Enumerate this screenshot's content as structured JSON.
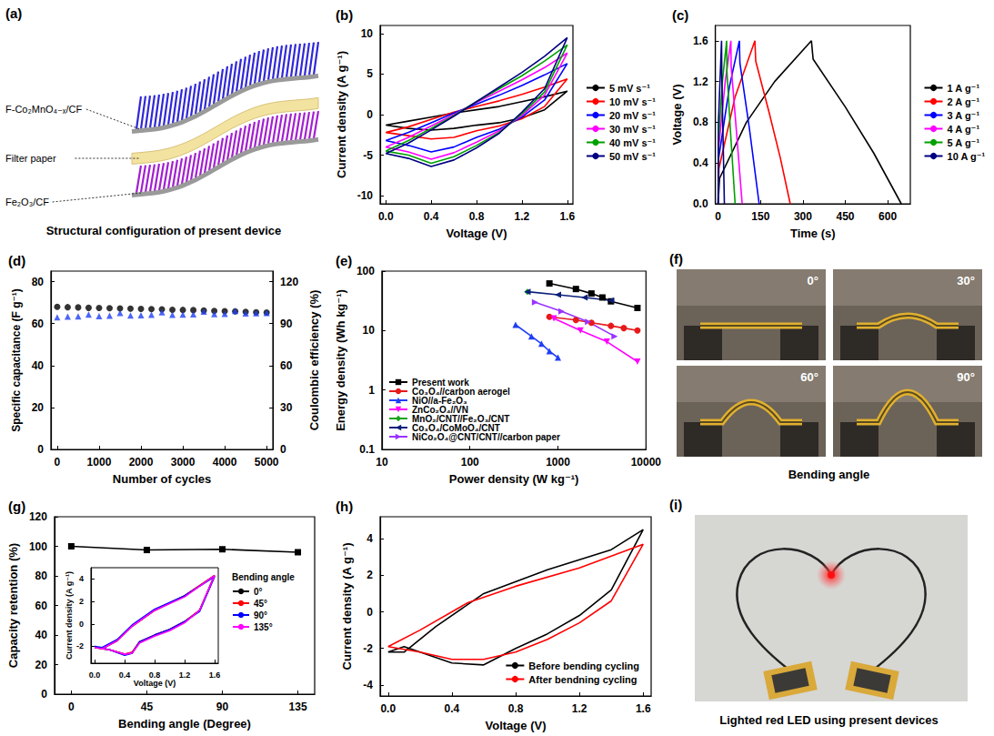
{
  "chart_data": [
    {
      "panel": "(b)",
      "type": "line",
      "xlabel": "Voltage (V)",
      "ylabel": "Current density (A g⁻¹)",
      "xlim": [
        -0.05,
        1.65
      ],
      "xticks": [
        {
          "value": 0,
          "label": "0.0"
        },
        0.4,
        0.8,
        1.2,
        1.6
      ],
      "ylim": [
        -11,
        11
      ],
      "yticks": [
        -10,
        -5,
        0,
        5,
        10
      ],
      "legend": "right",
      "series": [
        {
          "name": "5 mV s⁻¹",
          "color": "#000000",
          "x": [
            0,
            0.2,
            0.4,
            0.6,
            0.8,
            1.0,
            1.2,
            1.4,
            1.6,
            1.4,
            1.2,
            1.0,
            0.8,
            0.6,
            0.4,
            0.2,
            0
          ],
          "values": [
            -1.3,
            -0.8,
            -0.3,
            0.2,
            0.6,
            1.0,
            1.6,
            2.2,
            2.9,
            0.6,
            -0.4,
            -1.0,
            -1.3,
            -1.7,
            -1.9,
            -1.7,
            -1.3
          ]
        },
        {
          "name": "10 mV s⁻¹",
          "color": "#ff0000",
          "x": [
            0,
            0.2,
            0.4,
            0.6,
            0.8,
            1.0,
            1.2,
            1.4,
            1.6,
            1.4,
            1.2,
            1.0,
            0.8,
            0.6,
            0.4,
            0.2,
            0
          ],
          "values": [
            -2.2,
            -1.5,
            -0.6,
            0.3,
            1.0,
            1.7,
            2.5,
            3.4,
            4.4,
            1.0,
            -0.5,
            -1.4,
            -2.0,
            -2.8,
            -3.0,
            -2.6,
            -2.2
          ]
        },
        {
          "name": "20 mV s⁻¹",
          "color": "#0000ff",
          "x": [
            0,
            0.2,
            0.4,
            0.6,
            0.8,
            1.0,
            1.2,
            1.4,
            1.6,
            1.4,
            1.2,
            1.0,
            0.8,
            0.6,
            0.4,
            0.2,
            0
          ],
          "values": [
            -3.2,
            -2.2,
            -1.0,
            0.2,
            1.3,
            2.4,
            3.6,
            4.9,
            6.3,
            1.8,
            -0.3,
            -1.8,
            -2.8,
            -4.0,
            -4.6,
            -3.8,
            -3.2
          ]
        },
        {
          "name": "30 mV s⁻¹",
          "color": "#ff00ff",
          "x": [
            0,
            0.2,
            0.4,
            0.6,
            0.8,
            1.0,
            1.2,
            1.4,
            1.6,
            1.4,
            1.2,
            1.0,
            0.8,
            0.6,
            0.4,
            0.2,
            0
          ],
          "values": [
            -4.0,
            -2.8,
            -1.4,
            0,
            1.5,
            2.9,
            4.3,
            5.8,
            7.6,
            2.4,
            -0.1,
            -2.0,
            -3.4,
            -4.7,
            -5.5,
            -4.6,
            -4.0
          ]
        },
        {
          "name": "40 mV s⁻¹",
          "color": "#00a000",
          "x": [
            0,
            0.2,
            0.4,
            0.6,
            0.8,
            1.0,
            1.2,
            1.4,
            1.6,
            1.4,
            1.2,
            1.0,
            0.8,
            0.6,
            0.4,
            0.2,
            0
          ],
          "values": [
            -4.5,
            -3.2,
            -1.7,
            -0.1,
            1.6,
            3.2,
            4.8,
            6.6,
            8.6,
            2.8,
            0.1,
            -2.2,
            -3.8,
            -5.2,
            -6.0,
            -5.0,
            -4.5
          ]
        },
        {
          "name": "50 mV s⁻¹",
          "color": "#000080",
          "x": [
            0,
            0.2,
            0.4,
            0.6,
            0.8,
            1.0,
            1.2,
            1.4,
            1.6,
            1.4,
            1.2,
            1.0,
            0.8,
            0.6,
            0.4,
            0.2,
            0
          ],
          "values": [
            -4.8,
            -3.5,
            -1.9,
            -0.2,
            1.6,
            3.4,
            5.2,
            7.2,
            9.5,
            3.2,
            0.3,
            -2.3,
            -4.1,
            -5.6,
            -6.4,
            -5.4,
            -4.8
          ]
        }
      ]
    },
    {
      "panel": "(c)",
      "type": "line",
      "xlabel": "Time (s)",
      "ylabel": "Voltage (V)",
      "xlim": [
        -10,
        680
      ],
      "xticks": [
        0,
        150,
        300,
        450,
        600
      ],
      "ylim": [
        0,
        1.75
      ],
      "yticks": [
        {
          "value": 0,
          "label": "0.0"
        },
        0.4,
        0.8,
        1.2,
        1.6
      ],
      "legend": "right",
      "series": [
        {
          "name": "1 A g⁻¹",
          "color": "#000000",
          "x": [
            0,
            5,
            100,
            200,
            330,
            336,
            450,
            550,
            648
          ],
          "values": [
            0,
            0.25,
            0.8,
            1.2,
            1.6,
            1.42,
            0.95,
            0.5,
            0
          ]
        },
        {
          "name": "2 A g⁻¹",
          "color": "#ff0000",
          "x": [
            0,
            3,
            60,
            130,
            133,
            180,
            220,
            255
          ],
          "values": [
            0,
            0.35,
            1.05,
            1.6,
            1.4,
            0.9,
            0.45,
            0
          ]
        },
        {
          "name": "3 A g⁻¹",
          "color": "#0000ff",
          "x": [
            0,
            2,
            40,
            75,
            77,
            110,
            145
          ],
          "values": [
            0,
            0.45,
            1.15,
            1.6,
            1.38,
            0.75,
            0
          ]
        },
        {
          "name": "4 A g⁻¹",
          "color": "#ff00ff",
          "x": [
            0,
            2,
            25,
            45,
            46,
            65,
            85
          ],
          "values": [
            0,
            0.55,
            1.2,
            1.6,
            1.35,
            0.7,
            0
          ]
        },
        {
          "name": "5 A g⁻¹",
          "color": "#00a000",
          "x": [
            0,
            1,
            15,
            30,
            31,
            45,
            60
          ],
          "values": [
            0,
            0.6,
            1.2,
            1.6,
            1.3,
            0.65,
            0
          ]
        },
        {
          "name": "10 A g⁻¹",
          "color": "#000080",
          "x": [
            0,
            1,
            12,
            13,
            22
          ],
          "values": [
            0,
            0.8,
            1.6,
            1.25,
            0
          ]
        }
      ]
    },
    {
      "panel": "(d)",
      "type": "scatter",
      "xlabel": "Number of cycles",
      "ylabel": "Specific capacitance (F g⁻¹)",
      "y2label": "Coulombic efficiency (%)",
      "xlim": [
        -150,
        5150
      ],
      "xticks": [
        0,
        1000,
        2000,
        3000,
        4000,
        5000
      ],
      "ylim": [
        0,
        85
      ],
      "yticks": [
        0,
        20,
        40,
        60,
        80
      ],
      "y2lim": [
        0,
        127.5
      ],
      "y2ticks": [
        0,
        30,
        60,
        90,
        120
      ],
      "x": [
        0,
        250,
        500,
        750,
        1000,
        1250,
        1500,
        1750,
        2000,
        2250,
        2500,
        2750,
        3000,
        3250,
        3500,
        3750,
        4000,
        4250,
        4500,
        4750,
        5000
      ],
      "series": [
        {
          "name": "Specific capacitance",
          "color": "#000000",
          "marker": "circle",
          "values": [
            68.0,
            67.8,
            67.7,
            67.5,
            67.4,
            67.3,
            67.2,
            67.1,
            67.0,
            66.9,
            66.8,
            66.6,
            66.5,
            66.4,
            66.2,
            66.0,
            65.9,
            65.8,
            65.6,
            65.4,
            65.3
          ]
        },
        {
          "name": "Coulombic efficiency",
          "color": "#1f3ff5",
          "marker": "triangle-up",
          "axis": "y2",
          "values": [
            94.5,
            95.0,
            95.2,
            96.5,
            95.3,
            95.6,
            97.5,
            95.8,
            96.0,
            96.2,
            98.0,
            96.3,
            96.5,
            96.6,
            98.5,
            96.8,
            97.0,
            99.0,
            97.2,
            97.4,
            97.5
          ]
        }
      ]
    },
    {
      "panel": "(e)",
      "type": "line",
      "log": true,
      "xlabel": "Power density (W kg⁻¹)",
      "ylabel": "Energy density (Wh kg⁻¹)",
      "xlim": [
        10,
        10000
      ],
      "xticks": [
        10,
        100,
        1000,
        10000
      ],
      "ylim": [
        0.1,
        100
      ],
      "yticks": [
        0.1,
        1,
        10,
        100
      ],
      "legend": "lower left",
      "series": [
        {
          "name": "Present work",
          "color": "#000000",
          "marker": "square",
          "x": [
            800,
            1600,
            2400,
            3200,
            4000,
            8000
          ],
          "values": [
            62,
            50,
            42,
            36,
            31,
            24
          ]
        },
        {
          "name": "Co₃O₄//carbon aerogel",
          "color": "#e8191b",
          "marker": "circle",
          "x": [
            800,
            1600,
            2400,
            4000,
            5600,
            8000
          ],
          "values": [
            17,
            15,
            13.5,
            12,
            11,
            10
          ]
        },
        {
          "name": "NiO//a-Fe₂O₃",
          "color": "#1f3ff5",
          "marker": "triangle-up",
          "x": [
            330,
            500,
            650,
            800,
            1000
          ],
          "values": [
            12.5,
            8,
            6,
            4.5,
            3.5
          ]
        },
        {
          "name": "ZnCo₂O₄//VN",
          "color": "#ff00ff",
          "marker": "triangle-down",
          "x": [
            900,
            1800,
            3600,
            8000
          ],
          "values": [
            16,
            10,
            6.5,
            3
          ]
        },
        {
          "name": "MnO₂/CNT//Fe₂O₃/CNT",
          "color": "#1aa31a",
          "marker": "diamond",
          "x": [
            450
          ],
          "values": [
            45
          ]
        },
        {
          "name": "Co₃O₄/CoMoO₄/CNT",
          "color": "#0b1f7a",
          "marker": "triangle-left",
          "x": [
            450,
            1000,
            2000,
            4000
          ],
          "values": [
            45,
            40,
            36,
            32
          ]
        },
        {
          "name": "NiCo₂O₄@CNT/CNT//carbon paper",
          "color": "#9933ff",
          "marker": "triangle-right",
          "x": [
            550,
            1100,
            2200,
            4400
          ],
          "values": [
            30,
            21,
            14,
            8
          ]
        }
      ]
    },
    {
      "panel": "(g)",
      "type": "line",
      "xlabel": "Bending angle (Degree)",
      "ylabel": "Capacity retention (%)",
      "xlim": [
        -10,
        145
      ],
      "xticks": [
        0,
        45,
        90,
        135
      ],
      "ylim": [
        0,
        120
      ],
      "yticks": [
        0,
        20,
        40,
        60,
        80,
        100,
        120
      ],
      "series": [
        {
          "name": "Capacity retention",
          "color": "#000000",
          "marker": "square",
          "x": [
            0,
            45,
            90,
            135
          ],
          "values": [
            100,
            97.5,
            98,
            96
          ]
        }
      ],
      "inset": {
        "type": "line",
        "title": "Bending angle",
        "xlabel": "Voltage (V)",
        "ylabel": "Current density (A g⁻¹)",
        "xlim": [
          -0.05,
          1.65
        ],
        "xticks": [
          {
            "value": 0,
            "label": "0.0"
          },
          0.4,
          0.8,
          1.2,
          1.6
        ],
        "ylim": [
          -3.5,
          5
        ],
        "yticks": [
          -2,
          0,
          2,
          4
        ],
        "legend": "right",
        "series": [
          {
            "name": "0°",
            "color": "#000000",
            "x": [
              0,
              0.1,
              0.3,
              0.5,
              0.8,
              1.2,
              1.6,
              1.4,
              1.2,
              1.0,
              0.8,
              0.6,
              0.5,
              0.4,
              0.2,
              0
            ],
            "values": [
              -2.1,
              -2.2,
              -1.5,
              -0.2,
              1.2,
              2.5,
              4.3,
              1.2,
              0.2,
              -0.5,
              -1.0,
              -1.6,
              -2.6,
              -2.7,
              -2.3,
              -2.1
            ]
          },
          {
            "name": "45°",
            "color": "#ff0000",
            "x": [
              0,
              0.1,
              0.3,
              0.5,
              0.8,
              1.2,
              1.6,
              1.4,
              1.2,
              1.0,
              0.8,
              0.6,
              0.5,
              0.4,
              0.2,
              0
            ],
            "values": [
              -2.1,
              -2.2,
              -1.5,
              -0.2,
              1.2,
              2.5,
              4.3,
              1.2,
              0.2,
              -0.5,
              -1.0,
              -1.6,
              -2.5,
              -2.7,
              -2.3,
              -2.1
            ]
          },
          {
            "name": "90°",
            "color": "#0000ff",
            "x": [
              0,
              0.1,
              0.3,
              0.5,
              0.8,
              1.2,
              1.6,
              1.4,
              1.2,
              1.0,
              0.8,
              0.6,
              0.5,
              0.4,
              0.2,
              0
            ],
            "values": [
              -2.0,
              -2.1,
              -1.4,
              -0.1,
              1.3,
              2.5,
              4.2,
              1.1,
              0.2,
              -0.5,
              -1.0,
              -1.6,
              -2.6,
              -2.8,
              -2.3,
              -2.0
            ]
          },
          {
            "name": "135°",
            "color": "#ff00ff",
            "x": [
              0,
              0.1,
              0.3,
              0.5,
              0.8,
              1.2,
              1.6,
              1.4,
              1.2,
              1.0,
              0.8,
              0.6,
              0.5,
              0.4,
              0.2,
              0
            ],
            "values": [
              -2.1,
              -2.2,
              -1.5,
              -0.2,
              1.2,
              2.4,
              4.3,
              1.2,
              0.1,
              -0.6,
              -1.1,
              -1.7,
              -2.6,
              -2.7,
              -2.3,
              -2.1
            ]
          }
        ]
      }
    },
    {
      "panel": "(h)",
      "type": "line",
      "xlabel": "Voltage (V)",
      "ylabel": "Current density (A g⁻¹)",
      "xlim": [
        -0.05,
        1.65
      ],
      "xticks": [
        {
          "value": 0,
          "label": "0.0"
        },
        0.4,
        0.8,
        1.2,
        1.6
      ],
      "ylim": [
        -4.6,
        5.2
      ],
      "yticks": [
        -4,
        -2,
        0,
        2,
        4
      ],
      "legend": "lower right",
      "series": [
        {
          "name": "Before bending cycling",
          "color": "#000000",
          "x": [
            0,
            0.1,
            0.3,
            0.6,
            1.0,
            1.4,
            1.6,
            1.4,
            1.2,
            1.0,
            0.8,
            0.6,
            0.4,
            0.2,
            0.1,
            0
          ],
          "values": [
            -2.2,
            -2.2,
            -0.8,
            1.0,
            2.3,
            3.4,
            4.5,
            1.2,
            -0.2,
            -1.2,
            -2.0,
            -2.9,
            -2.8,
            -2.2,
            -1.9,
            -2.2
          ]
        },
        {
          "name": "After bendning cycling",
          "color": "#ff0000",
          "x": [
            0,
            0.2,
            0.5,
            0.8,
            1.2,
            1.6,
            1.4,
            1.2,
            1.0,
            0.8,
            0.6,
            0.4,
            0.3,
            0.2,
            0
          ],
          "values": [
            -1.9,
            -1.0,
            0.5,
            1.4,
            2.4,
            3.7,
            0.6,
            -0.6,
            -1.5,
            -2.2,
            -2.6,
            -2.6,
            -2.4,
            -2.2,
            -1.9
          ]
        }
      ]
    }
  ],
  "diagrams": [
    {
      "panel": "(a)",
      "labels": [
        "F-Co₂MnO₄₋ₓ/CF",
        "Filter paper",
        "Fe₂O₃/CF"
      ],
      "caption": "Structural configuration of present device"
    },
    {
      "panel": "(f)",
      "labels": [
        "0°",
        "30°",
        "60°",
        "90°"
      ],
      "caption": "Bending angle"
    },
    {
      "panel": "(i)",
      "caption": "Lighted red LED using present devices"
    }
  ]
}
